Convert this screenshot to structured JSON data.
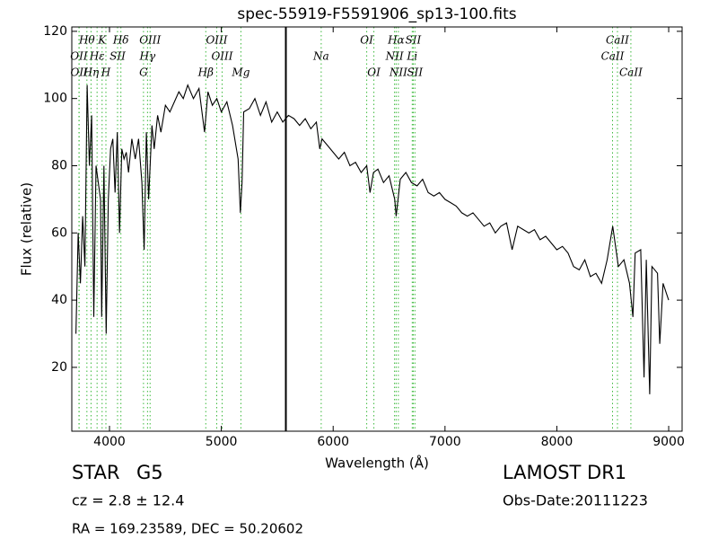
{
  "chart_data": {
    "type": "line",
    "title": "spec-55919-F5591906_sp13-100.fits",
    "x_label": "Wavelength (Å)",
    "y_label": "Flux (relative)",
    "x": [
      3700,
      3720,
      3740,
      3760,
      3780,
      3800,
      3820,
      3840,
      3860,
      3880,
      3900,
      3920,
      3930,
      3950,
      3970,
      3990,
      4010,
      4030,
      4050,
      4070,
      4090,
      4110,
      4130,
      4150,
      4170,
      4200,
      4230,
      4260,
      4290,
      4310,
      4330,
      4350,
      4380,
      4400,
      4430,
      4460,
      4500,
      4540,
      4580,
      4620,
      4660,
      4700,
      4750,
      4800,
      4850,
      4880,
      4920,
      4960,
      5000,
      5050,
      5100,
      5150,
      5170,
      5185,
      5200,
      5250,
      5300,
      5350,
      5400,
      5450,
      5500,
      5550,
      5600,
      5650,
      5700,
      5750,
      5800,
      5850,
      5880,
      5900,
      5950,
      6000,
      6050,
      6100,
      6150,
      6200,
      6250,
      6300,
      6330,
      6360,
      6400,
      6450,
      6500,
      6550,
      6563,
      6600,
      6650,
      6700,
      6750,
      6800,
      6850,
      6900,
      6950,
      7000,
      7050,
      7100,
      7150,
      7200,
      7250,
      7300,
      7350,
      7400,
      7450,
      7500,
      7550,
      7600,
      7650,
      7700,
      7750,
      7800,
      7850,
      7900,
      7950,
      8000,
      8050,
      8100,
      8150,
      8200,
      8250,
      8300,
      8350,
      8400,
      8450,
      8500,
      8550,
      8600,
      8650,
      8680,
      8700,
      8750,
      8780,
      8800,
      8830,
      8850,
      8900,
      8920,
      8950,
      9000
    ],
    "values": [
      30,
      60,
      45,
      65,
      50,
      104,
      80,
      95,
      35,
      80,
      75,
      70,
      35,
      80,
      30,
      70,
      85,
      88,
      72,
      90,
      60,
      85,
      82,
      84,
      78,
      88,
      82,
      88,
      75,
      55,
      90,
      70,
      92,
      85,
      95,
      90,
      98,
      96,
      99,
      102,
      100,
      104,
      100,
      103,
      90,
      102,
      98,
      100,
      96,
      99,
      92,
      82,
      66,
      75,
      96,
      97,
      100,
      95,
      99,
      93,
      96,
      93,
      95,
      94,
      92,
      94,
      91,
      93,
      85,
      88,
      86,
      84,
      82,
      84,
      80,
      81,
      78,
      80,
      72,
      78,
      79,
      75,
      77,
      70,
      65,
      76,
      78,
      75,
      74,
      76,
      72,
      71,
      72,
      70,
      69,
      68,
      66,
      65,
      66,
      64,
      62,
      63,
      60,
      62,
      63,
      55,
      62,
      61,
      60,
      61,
      58,
      59,
      57,
      55,
      56,
      54,
      50,
      49,
      52,
      47,
      48,
      45,
      52,
      62,
      50,
      52,
      45,
      35,
      54,
      55,
      17,
      52,
      12,
      50,
      48,
      27,
      45,
      40
    ],
    "color": "#000000",
    "xlim": [
      3663,
      9120
    ],
    "ylim": [
      1,
      121.3
    ],
    "xticks": [
      4000,
      5000,
      6000,
      7000,
      8000,
      9000
    ],
    "yticks": [
      20,
      40,
      60,
      80,
      100,
      120
    ],
    "sky_line": 5577,
    "line_color": "#3cb93c",
    "spectral_lines": [
      {
        "label": "Hθ",
        "x": 3798,
        "row": 0
      },
      {
        "label": "K",
        "x": 3934,
        "row": 0
      },
      {
        "label": "Hδ",
        "x": 4102,
        "row": 0
      },
      {
        "label": "OIII",
        "x": 4363,
        "row": 0
      },
      {
        "label": "OIII",
        "x": 4959,
        "row": 0
      },
      {
        "label": "OI",
        "x": 6300,
        "row": 0
      },
      {
        "label": "Hα",
        "x": 6563,
        "row": 0
      },
      {
        "label": "SII",
        "x": 6716,
        "row": 0
      },
      {
        "label": "CaII",
        "x": 8542,
        "row": 0
      },
      {
        "label": "OII",
        "x": 3727,
        "row": 1
      },
      {
        "label": "Hε",
        "x": 3889,
        "row": 1
      },
      {
        "label": "SII",
        "x": 4072,
        "row": 1
      },
      {
        "label": "Hγ",
        "x": 4340,
        "row": 1
      },
      {
        "label": "OIII",
        "x": 5007,
        "row": 1
      },
      {
        "label": "Na",
        "x": 5893,
        "row": 1
      },
      {
        "label": "NII",
        "x": 6549,
        "row": 1
      },
      {
        "label": "Li",
        "x": 6707,
        "row": 1
      },
      {
        "label": "CaII",
        "x": 8498,
        "row": 1
      },
      {
        "label": "OII",
        "x": 3729,
        "row": 2
      },
      {
        "label": "Hη",
        "x": 3835,
        "row": 2
      },
      {
        "label": "H",
        "x": 3968,
        "row": 2
      },
      {
        "label": "G",
        "x": 4304,
        "row": 2
      },
      {
        "label": "Hβ",
        "x": 4861,
        "row": 2
      },
      {
        "label": "Mg",
        "x": 5175,
        "row": 2
      },
      {
        "label": "OI",
        "x": 6364,
        "row": 2
      },
      {
        "label": "NII",
        "x": 6583,
        "row": 2
      },
      {
        "label": "SII",
        "x": 6731,
        "row": 2
      },
      {
        "label": "CaII",
        "x": 8662,
        "row": 2
      }
    ]
  },
  "info": {
    "object_class": "STAR",
    "subclass": "G5",
    "redshift": "cz = 2.8 ± 12.4",
    "coords": "RA = 169.23589, DEC = 50.20602",
    "survey": "LAMOST DR1",
    "obs_date": "Obs-Date:20111223"
  }
}
